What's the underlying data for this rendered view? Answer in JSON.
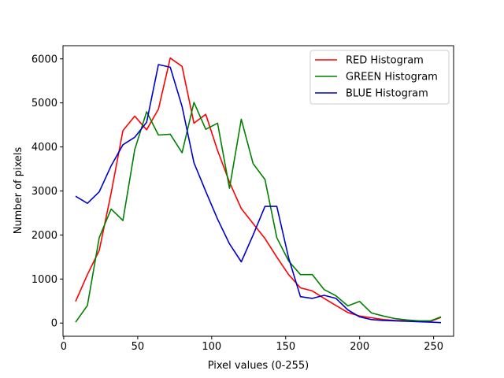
{
  "chart_data": {
    "type": "line",
    "xlabel": "Pixel values (0-255)",
    "ylabel": "Number of pixels",
    "xlim": [
      -0.5,
      263.5
    ],
    "ylim": [
      -300,
      6300
    ],
    "xticks": [
      0,
      50,
      100,
      150,
      200,
      250
    ],
    "yticks": [
      0,
      1000,
      2000,
      3000,
      4000,
      5000,
      6000
    ],
    "grid": false,
    "legend_position": "top-right",
    "x": [
      8,
      16,
      24,
      32,
      40,
      48,
      56,
      64,
      72,
      80,
      88,
      96,
      104,
      112,
      120,
      128,
      136,
      144,
      152,
      160,
      168,
      176,
      184,
      192,
      200,
      208,
      216,
      224,
      232,
      240,
      248,
      255
    ],
    "series": [
      {
        "name": "RED Histogram",
        "color": "#ff0000",
        "values": [
          490,
          1100,
          1650,
          2950,
          4370,
          4700,
          4390,
          4860,
          6020,
          5830,
          4540,
          4740,
          3920,
          3200,
          2600,
          2260,
          1920,
          1500,
          1100,
          800,
          730,
          560,
          400,
          240,
          160,
          120,
          80,
          60,
          50,
          40,
          40,
          130
        ]
      },
      {
        "name": "GREEN Histogram",
        "color": "#008000",
        "values": [
          20,
          400,
          1940,
          2590,
          2330,
          3940,
          4800,
          4270,
          4290,
          3870,
          5010,
          4400,
          4540,
          3060,
          4630,
          3620,
          3260,
          1940,
          1410,
          1100,
          1100,
          760,
          620,
          390,
          490,
          230,
          160,
          100,
          70,
          50,
          50,
          140
        ]
      },
      {
        "name": "BLUE Histogram",
        "color": "#0000cc",
        "values": [
          2880,
          2720,
          2980,
          3570,
          4050,
          4220,
          4560,
          5870,
          5810,
          4920,
          3640,
          2990,
          2360,
          1800,
          1390,
          2000,
          2650,
          2650,
          1480,
          600,
          560,
          630,
          560,
          300,
          140,
          80,
          60,
          50,
          40,
          30,
          20,
          10
        ]
      }
    ]
  }
}
